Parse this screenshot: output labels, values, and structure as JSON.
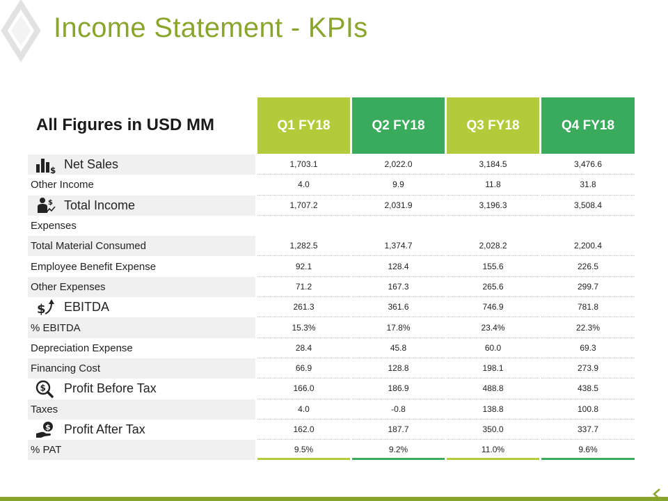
{
  "title": "Income Statement - KPIs",
  "subtitle": "All Figures in USD MM",
  "colors": {
    "accent_olive": "#8aa52b",
    "lime": "#b3cb3a",
    "green": "#3aab5c"
  },
  "quarters": [
    "Q1 FY18",
    "Q2 FY18",
    "Q3 FY18",
    "Q4 FY18"
  ],
  "rows": [
    {
      "label": "Net Sales",
      "icon": "bar-chart-dollar-icon",
      "values": [
        "1,703.1",
        "2,022.0",
        "3,184.5",
        "3,476.6"
      ]
    },
    {
      "label": "Other Income",
      "values": [
        "4.0",
        "9.9",
        "11.8",
        "31.8"
      ]
    },
    {
      "label": "Total Income",
      "icon": "person-money-icon",
      "values": [
        "1,707.2",
        "2,031.9",
        "3,196.3",
        "3,508.4"
      ]
    },
    {
      "label": "Expenses",
      "values": []
    },
    {
      "label": "Total Material Consumed",
      "values": [
        "1,282.5",
        "1,374.7",
        "2,028.2",
        "2,200.4"
      ]
    },
    {
      "label": "Employee Benefit Expense",
      "values": [
        "92.1",
        "128.4",
        "155.6",
        "226.5"
      ]
    },
    {
      "label": "Other Expenses",
      "values": [
        "71.2",
        "167.3",
        "265.6",
        "299.7"
      ]
    },
    {
      "label": "EBITDA",
      "icon": "dollar-arrow-up-icon",
      "values": [
        "261.3",
        "361.6",
        "746.9",
        "781.8"
      ]
    },
    {
      "label": "% EBITDA",
      "values": [
        "15.3%",
        "17.8%",
        "23.4%",
        "22.3%"
      ]
    },
    {
      "label": "Depreciation Expense",
      "values": [
        "28.4",
        "45.8",
        "60.0",
        "69.3"
      ]
    },
    {
      "label": "Financing Cost",
      "values": [
        "66.9",
        "128.8",
        "198.1",
        "273.9"
      ]
    },
    {
      "label": "Profit Before Tax",
      "icon": "magnifier-dollar-icon",
      "values": [
        "166.0",
        "186.9",
        "488.8",
        "438.5"
      ]
    },
    {
      "label": "Taxes",
      "values": [
        "4.0",
        "-0.8",
        "138.8",
        "100.8"
      ]
    },
    {
      "label": "Profit After Tax",
      "icon": "hand-coin-icon",
      "values": [
        "162.0",
        "187.7",
        "350.0",
        "337.7"
      ]
    },
    {
      "label": "% PAT",
      "values": [
        "9.5%",
        "9.2%",
        "11.0%",
        "9.6%"
      ]
    }
  ]
}
